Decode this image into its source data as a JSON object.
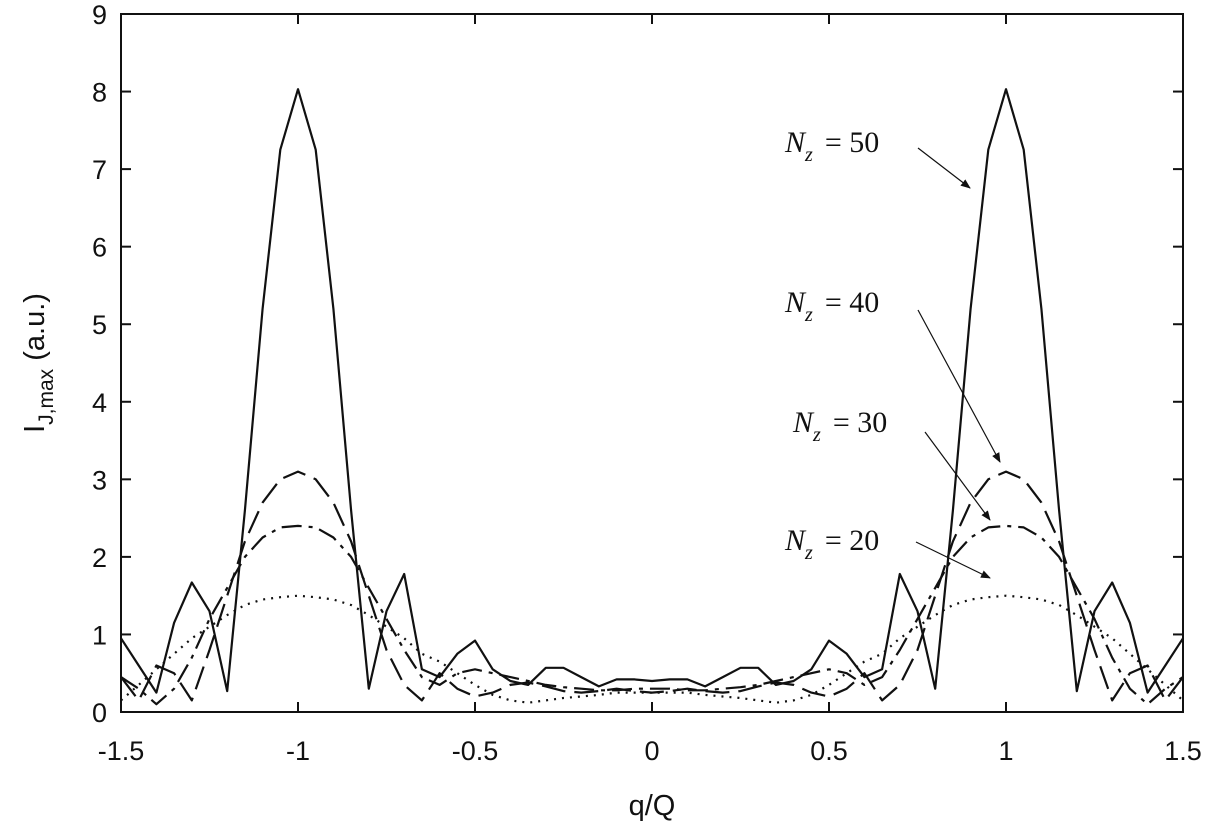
{
  "chart_data": {
    "type": "line",
    "x_label": "q/Q",
    "y_label": {
      "main": "I",
      "sub": "J,max",
      "rest": " (a.u.)"
    },
    "x": [
      -1.5,
      -1.45,
      -1.4,
      -1.35,
      -1.3,
      -1.25,
      -1.2,
      -1.15,
      -1.1,
      -1.05,
      -1,
      -0.95,
      -0.9,
      -0.85,
      -0.8,
      -0.75,
      -0.7,
      -0.65,
      -0.6,
      -0.55,
      -0.5,
      -0.45,
      -0.4,
      -0.35,
      -0.3,
      -0.25,
      -0.2,
      -0.15,
      -0.1,
      -0.05,
      0,
      0.05,
      0.1,
      0.15,
      0.2,
      0.25,
      0.3,
      0.35,
      0.4,
      0.45,
      0.5,
      0.55,
      0.6,
      0.65,
      0.7,
      0.75,
      0.8,
      0.85,
      0.9,
      0.95,
      1,
      1.05,
      1.1,
      1.15,
      1.2,
      1.25,
      1.3,
      1.35,
      1.4,
      1.45,
      1.5
    ],
    "series": [
      {
        "name": {
          "main": "N",
          "sub": "z",
          "rest": "= 50"
        },
        "color": "#111111",
        "style": "solid",
        "values": [
          0.95,
          0.6,
          0.25,
          1.15,
          1.67,
          1.3,
          0.27,
          2.6,
          5.2,
          7.25,
          8.03,
          7.25,
          5.2,
          2.6,
          0.3,
          1.3,
          1.78,
          0.55,
          0.45,
          0.75,
          0.92,
          0.55,
          0.4,
          0.35,
          0.57,
          0.57,
          0.45,
          0.33,
          0.42,
          0.42,
          0.4,
          0.42,
          0.42,
          0.33,
          0.45,
          0.57,
          0.57,
          0.35,
          0.4,
          0.55,
          0.92,
          0.75,
          0.45,
          0.55,
          1.78,
          1.3,
          0.3,
          2.6,
          5.2,
          7.25,
          8.03,
          7.25,
          5.2,
          2.6,
          0.27,
          1.3,
          1.67,
          1.15,
          0.25,
          0.6,
          0.95
        ]
      },
      {
        "name": {
          "main": "N",
          "sub": "z",
          "rest": "= 40"
        },
        "color": "#111111",
        "style": "dashed",
        "values": [
          0.45,
          0.15,
          0.6,
          0.5,
          0.15,
          0.8,
          1.5,
          2.2,
          2.7,
          3.0,
          3.1,
          3.0,
          2.7,
          2.2,
          1.5,
          0.8,
          0.35,
          0.15,
          0.5,
          0.3,
          0.2,
          0.25,
          0.35,
          0.38,
          0.33,
          0.27,
          0.25,
          0.27,
          0.3,
          0.27,
          0.25,
          0.27,
          0.3,
          0.27,
          0.25,
          0.27,
          0.33,
          0.38,
          0.35,
          0.25,
          0.2,
          0.3,
          0.5,
          0.15,
          0.35,
          0.8,
          1.5,
          2.2,
          2.7,
          3.0,
          3.1,
          3.0,
          2.7,
          2.2,
          1.5,
          0.8,
          0.15,
          0.5,
          0.6,
          0.15,
          0.45
        ]
      },
      {
        "name": {
          "main": "N",
          "sub": "z",
          "rest": "= 30"
        },
        "color": "#111111",
        "style": "dashdot",
        "values": [
          0.45,
          0.3,
          0.1,
          0.3,
          0.7,
          1.2,
          1.6,
          2.0,
          2.25,
          2.38,
          2.4,
          2.38,
          2.25,
          2.0,
          1.6,
          1.2,
          0.8,
          0.45,
          0.35,
          0.5,
          0.55,
          0.5,
          0.45,
          0.4,
          0.35,
          0.32,
          0.3,
          0.28,
          0.28,
          0.3,
          0.3,
          0.3,
          0.28,
          0.28,
          0.3,
          0.32,
          0.35,
          0.4,
          0.45,
          0.5,
          0.55,
          0.5,
          0.35,
          0.45,
          0.8,
          1.2,
          1.6,
          2.0,
          2.25,
          2.38,
          2.4,
          2.38,
          2.25,
          2.0,
          1.6,
          1.2,
          0.7,
          0.3,
          0.1,
          0.3,
          0.45
        ]
      },
      {
        "name": {
          "main": "N",
          "sub": "z",
          "rest": "= 20"
        },
        "color": "#111111",
        "style": "dotted",
        "values": [
          0.15,
          0.35,
          0.55,
          0.75,
          0.95,
          1.1,
          1.25,
          1.38,
          1.45,
          1.48,
          1.5,
          1.48,
          1.45,
          1.38,
          1.25,
          1.1,
          0.95,
          0.75,
          0.65,
          0.5,
          0.35,
          0.22,
          0.15,
          0.12,
          0.15,
          0.18,
          0.2,
          0.22,
          0.25,
          0.25,
          0.25,
          0.25,
          0.25,
          0.22,
          0.2,
          0.18,
          0.15,
          0.12,
          0.15,
          0.22,
          0.35,
          0.5,
          0.65,
          0.75,
          0.95,
          1.1,
          1.25,
          1.38,
          1.45,
          1.48,
          1.5,
          1.48,
          1.45,
          1.38,
          1.25,
          1.1,
          0.95,
          0.75,
          0.55,
          0.35,
          0.15
        ]
      }
    ],
    "xlim": [
      -1.5,
      1.5
    ],
    "xticks": [
      -1.5,
      -1,
      -0.5,
      0,
      0.5,
      1,
      1.5
    ],
    "ylim": [
      0,
      9
    ],
    "yticks": [
      0,
      1,
      2,
      3,
      4,
      5,
      6,
      7,
      8,
      9
    ],
    "grid": false
  }
}
